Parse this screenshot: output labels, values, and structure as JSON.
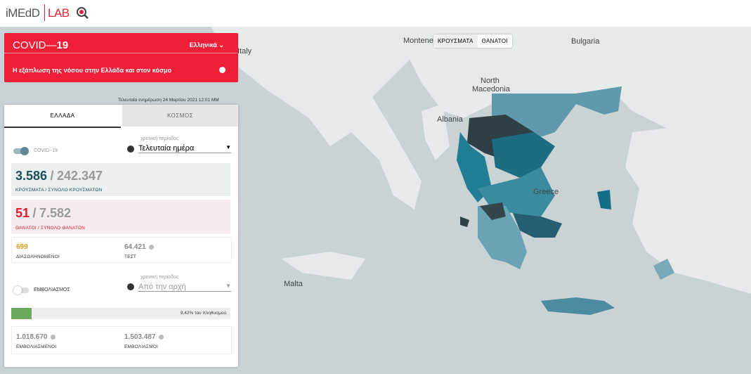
{
  "logo": {
    "brand": "iMEdD",
    "lab": "LAB"
  },
  "header": {
    "title_prefix": "COVID—",
    "title_bold": "19",
    "language": "Ελληνικά",
    "subtitle": "Η εξάπλωση της νόσου στην Ελλάδα και στον κόσμο"
  },
  "map": {
    "labels": [
      "Italy",
      "Montenegro",
      "Bulgaria",
      "North",
      "Macedonia",
      "Albania",
      "Greece",
      "Malta"
    ],
    "toggle": [
      "ΚΡΟΥΣΜΑΤΑ",
      "ΘΑΝΑΤΟΙ"
    ]
  },
  "last_update": "Τελευταία ενημέρωση 24 Μαρτίου 2021 12:01 ΜΜ",
  "tabs": [
    "ΕΛΛΑΔΑ",
    "ΚΟΣΜΟΣ"
  ],
  "covid": {
    "switch_label": "COVID−19",
    "period_label": "χρονική περίοδος",
    "period": "Τελευταία ημέρα",
    "separator": "/",
    "cases": {
      "current": "3.586",
      "total": "242.347",
      "caption": "ΚΡΟΥΣΜΑΤΑ / ΣΥΝΟΛΟ ΚΡΟΥΣΜΑΤΩΝ"
    },
    "deaths": {
      "current": "51",
      "total": "7.582",
      "caption": "ΘΑΝΑΤΟΙ / ΣΥΝΟΛΟ ΘΑΝΑΤΩΝ"
    },
    "intubated": {
      "value": "699",
      "caption": "ΔΙΑΣΩΛΗΝΩΜΕΝΟΙ"
    },
    "tests": {
      "value": "64.421",
      "caption": "ΤΕΣΤ"
    }
  },
  "vaccination": {
    "switch_label": "ΕΜΒΟΛΙΑΣΜΟΣ",
    "period_label": "χρονική περίοδος",
    "period": "Από την αρχή",
    "progress": {
      "value": 9.42,
      "label": "9,42% του πληθυσμού"
    },
    "vaccinated": {
      "value": "1.018.670",
      "caption": "ΕΜΒΟΛΙΑΣΜΕΝΟΙ"
    },
    "doses": {
      "value": "1.503.487",
      "caption": "ΕΜΒΟΛΙΑΣΜΟΙ"
    }
  }
}
